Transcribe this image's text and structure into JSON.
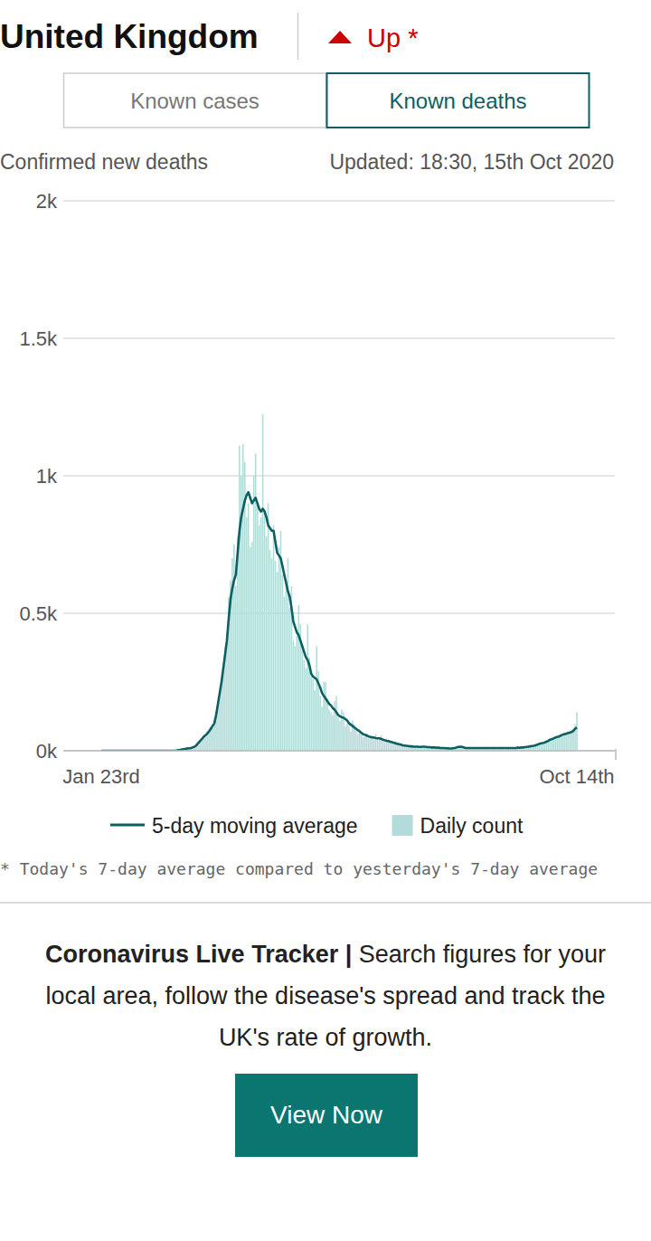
{
  "header": {
    "title": "United Kingdom",
    "status": "Up *"
  },
  "tabs": [
    {
      "label": "Known cases",
      "selected": false
    },
    {
      "label": "Known deaths",
      "selected": true
    }
  ],
  "chart_data": {
    "type": "bar",
    "subtitle": "Confirmed new deaths",
    "annotations": [
      "Updated: 18:30, 15th Oct 2020"
    ],
    "categories": [
      "Jan 23rd",
      null,
      null,
      null,
      null,
      null,
      null,
      null,
      null,
      null,
      null,
      null,
      null,
      null,
      null,
      null,
      null,
      null,
      null,
      null,
      null,
      null,
      null,
      null,
      null,
      null,
      null,
      null,
      null,
      null,
      null,
      null,
      null,
      null,
      null,
      null,
      null,
      null,
      null,
      null,
      null,
      null,
      null,
      null,
      null,
      null,
      null,
      null,
      null,
      null,
      null,
      null,
      null,
      null,
      null,
      null,
      null,
      null,
      null,
      null,
      null,
      null,
      null,
      null,
      null,
      null,
      null,
      null,
      null,
      null,
      null,
      null,
      null,
      null,
      null,
      null,
      null,
      null,
      null,
      null,
      null,
      null,
      null,
      null,
      null,
      null,
      null,
      null,
      null,
      null,
      null,
      null,
      null,
      null,
      null,
      null,
      null,
      null,
      null,
      null,
      null,
      null,
      null,
      null,
      null,
      null,
      null,
      null,
      null,
      null,
      null,
      null,
      null,
      null,
      null,
      null,
      null,
      null,
      null,
      null,
      null,
      null,
      null,
      null,
      null,
      null,
      null,
      null,
      null,
      null,
      null,
      null,
      null,
      null,
      null,
      null,
      null,
      null,
      null,
      null,
      null,
      null,
      null,
      null,
      null,
      null,
      null,
      null,
      null,
      null,
      null,
      null,
      null,
      null,
      null,
      null,
      null,
      null,
      null,
      null,
      null,
      null,
      null,
      null,
      null,
      null,
      null,
      null,
      null,
      null,
      null,
      null,
      null,
      null,
      null,
      null,
      null,
      null,
      null,
      null,
      null,
      null,
      null,
      null,
      null,
      null,
      null,
      null,
      null,
      null,
      null,
      null,
      null,
      null,
      null,
      null,
      null,
      null,
      null,
      null,
      null,
      null,
      null,
      null,
      null,
      null,
      null,
      null,
      null,
      null,
      null,
      null,
      null,
      null,
      null,
      null,
      null,
      null,
      null,
      null,
      null,
      null,
      null,
      null,
      null,
      null,
      null,
      null,
      null,
      null,
      null,
      null,
      null,
      null,
      null,
      null,
      null,
      null,
      null,
      null,
      null,
      null,
      null,
      null,
      null,
      null,
      null,
      null,
      null,
      null,
      null,
      null,
      null,
      null,
      null,
      null,
      null,
      null,
      null,
      null,
      null,
      null,
      null,
      null,
      null,
      "Oct 14th"
    ],
    "series": [
      {
        "name": "5-day moving average",
        "type": "line",
        "color": "#0d5f63",
        "values": [
          0,
          0,
          0,
          0,
          0,
          0,
          0,
          0,
          0,
          0,
          0,
          0,
          0,
          0,
          0,
          0,
          0,
          0,
          0,
          0,
          0,
          0,
          0,
          0,
          0,
          0,
          0,
          0,
          0,
          0,
          0,
          0,
          0,
          0,
          0,
          0,
          0,
          0,
          0,
          0,
          0,
          0,
          1,
          2,
          3,
          5,
          6,
          7,
          8,
          9,
          10,
          12,
          15,
          20,
          28,
          35,
          42,
          50,
          56,
          62,
          70,
          80,
          90,
          100,
          130,
          170,
          210,
          250,
          300,
          350,
          400,
          480,
          550,
          590,
          620,
          640,
          720,
          800,
          850,
          880,
          910,
          930,
          940,
          920,
          900,
          910,
          920,
          900,
          880,
          870,
          880,
          870,
          850,
          820,
          810,
          800,
          800,
          760,
          720,
          710,
          700,
          670,
          640,
          610,
          580,
          560,
          520,
          470,
          450,
          430,
          420,
          400,
          380,
          360,
          340,
          330,
          310,
          280,
          270,
          265,
          260,
          245,
          230,
          210,
          200,
          190,
          180,
          170,
          165,
          155,
          150,
          140,
          130,
          125,
          122,
          120,
          115,
          110,
          100,
          95,
          90,
          85,
          80,
          75,
          70,
          65,
          60,
          58,
          55,
          52,
          50,
          49,
          48,
          46,
          45,
          45,
          43,
          40,
          38,
          36,
          35,
          33,
          31,
          29,
          27,
          25,
          24,
          22,
          20,
          19,
          18,
          17,
          16,
          16,
          15,
          15,
          15,
          14,
          14,
          15,
          15,
          14,
          13,
          13,
          12,
          12,
          12,
          11,
          11,
          10,
          10,
          10,
          9,
          9,
          8,
          8,
          9,
          10,
          12,
          14,
          15,
          14,
          12,
          10,
          10,
          10,
          10,
          10,
          10,
          10,
          10,
          10,
          10,
          10,
          10,
          10,
          10,
          10,
          10,
          10,
          10,
          10,
          10,
          10,
          10,
          10,
          10,
          10,
          10,
          10,
          10,
          10,
          11,
          11,
          12,
          12,
          13,
          14,
          15,
          16,
          17,
          18,
          20,
          22,
          25,
          27,
          28,
          30,
          33,
          36,
          40,
          42,
          45,
          48,
          50,
          52,
          55,
          58,
          60,
          62,
          64,
          66,
          68,
          72,
          80,
          85
        ]
      },
      {
        "name": "Daily count",
        "type": "bar",
        "color": "#b2dcd9",
        "values": [
          0,
          0,
          0,
          0,
          0,
          0,
          0,
          0,
          0,
          0,
          0,
          0,
          0,
          0,
          0,
          0,
          0,
          0,
          0,
          0,
          0,
          0,
          0,
          0,
          0,
          0,
          0,
          0,
          0,
          0,
          0,
          0,
          0,
          0,
          0,
          0,
          0,
          0,
          0,
          0,
          0,
          1,
          1,
          2,
          3,
          5,
          7,
          6,
          8,
          10,
          10,
          14,
          16,
          21,
          30,
          33,
          40,
          55,
          48,
          70,
          65,
          85,
          95,
          110,
          140,
          180,
          210,
          260,
          290,
          380,
          420,
          560,
          620,
          700,
          750,
          600,
          780,
          1110,
          1000,
          1115,
          1050,
          850,
          900,
          740,
          760,
          1000,
          1080,
          900,
          820,
          850,
          1224,
          870,
          780,
          900,
          730,
          700,
          820,
          690,
          650,
          740,
          800,
          640,
          560,
          620,
          700,
          520,
          600,
          400,
          380,
          420,
          530,
          460,
          370,
          330,
          300,
          460,
          340,
          270,
          260,
          220,
          380,
          290,
          200,
          160,
          250,
          250,
          190,
          150,
          140,
          130,
          180,
          200,
          120,
          110,
          150,
          140,
          90,
          100,
          90,
          70,
          110,
          95,
          75,
          60,
          80,
          70,
          50,
          60,
          65,
          45,
          55,
          50,
          40,
          60,
          45,
          40,
          55,
          35,
          30,
          45,
          40,
          30,
          30,
          25,
          35,
          25,
          20,
          25,
          18,
          20,
          20,
          15,
          15,
          18,
          12,
          15,
          20,
          12,
          10,
          16,
          16,
          12,
          10,
          14,
          12,
          10,
          15,
          10,
          9,
          12,
          10,
          8,
          12,
          9,
          6,
          8,
          10,
          12,
          14,
          16,
          18,
          12,
          10,
          8,
          12,
          10,
          8,
          12,
          10,
          9,
          10,
          12,
          8,
          10,
          12,
          9,
          10,
          11,
          8,
          10,
          12,
          9,
          10,
          11,
          8,
          12,
          10,
          9,
          11,
          10,
          12,
          8,
          14,
          10,
          13,
          11,
          15,
          12,
          18,
          14,
          20,
          16,
          22,
          24,
          28,
          25,
          32,
          30,
          36,
          34,
          44,
          40,
          48,
          52,
          46,
          56,
          60,
          52,
          66,
          58,
          70,
          64,
          76,
          70,
          95,
          140
        ]
      }
    ],
    "ylim": [
      0,
      2000
    ],
    "yticks": [
      {
        "value": 0,
        "label": "0k"
      },
      {
        "value": 500,
        "label": "0.5k"
      },
      {
        "value": 1000,
        "label": "1k"
      },
      {
        "value": 1500,
        "label": "1.5k"
      },
      {
        "value": 2000,
        "label": "2k"
      }
    ],
    "grid": true,
    "legend": "bottom"
  },
  "footnote": "* Today's 7-day average compared to yesterday's 7-day average",
  "promo": {
    "title": "Coronavirus Live Tracker |",
    "text": "Search figures for your local area, follow the disease's spread and track the UK's rate of growth.",
    "button": "View Now"
  }
}
